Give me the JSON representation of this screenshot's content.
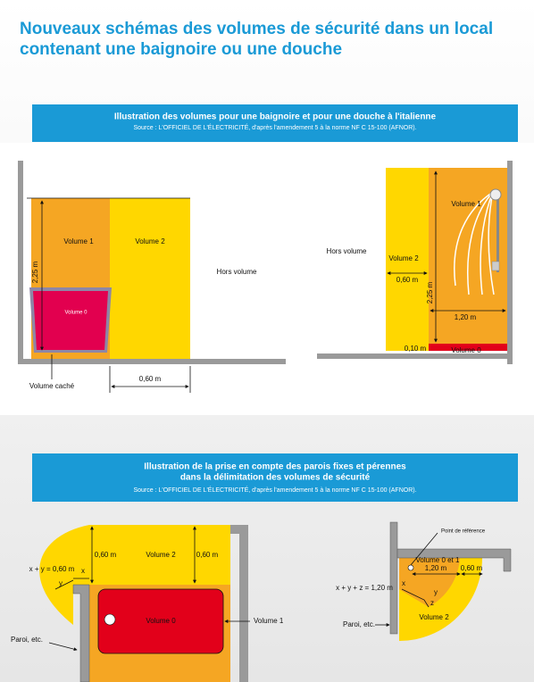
{
  "title": "Nouveaux schémas des volumes de sécurité dans un local contenant une baignoire ou une douche",
  "section1": {
    "heading": "Illustration des volumes pour une baignoire et pour une douche à l'italienne",
    "source": "Source : L'OFFICIEL DE L'ÉLECTRICITÉ, d'après l'amendement 5 à la norme NF C 15-100 (AFNOR).",
    "bath": {
      "volume1": "Volume 1",
      "volume2": "Volume 2",
      "outside": "Hors volume",
      "volume0": "Volume 0",
      "height": "2,25 m",
      "hidden": "Volume caché",
      "width": "0,60 m"
    },
    "shower": {
      "volume1": "Volume 1",
      "outside": "Hors volume",
      "volume2": "Volume 2",
      "width2": "0,60 m",
      "height": "2,25 m",
      "width1": "1,20 m",
      "floor": "0,10 m",
      "volume0": "Volume 0"
    }
  },
  "section2": {
    "heading_lines": [
      "Illustration de la prise en compte des parois fixes et pérennes",
      "dans la délimitation des volumes de sécurité"
    ],
    "source": "Source : L'OFFICIEL DE L'ÉLECTRICITÉ, d'après l'amendement 5 à la norme NF C 15-100 (AFNOR).",
    "bath": {
      "formula": "x + y = 0,60 m",
      "x": "x",
      "y": "y",
      "left_width": "0,60 m",
      "volume2": "Volume 2",
      "right_width": "0,60 m",
      "volume0": "Volume 0",
      "volume1": "Volume 1",
      "wall": "Paroi, etc."
    },
    "shower": {
      "reference": "Point de référence",
      "volume01": "Volume 0 et 1",
      "width1": "1,20 m",
      "width2": "0,60 m",
      "formula": "x + y + z = 1,20 m",
      "x": "x",
      "y": "y",
      "z": "z",
      "volume2": "Volume 2",
      "wall": "Paroi, etc."
    }
  }
}
